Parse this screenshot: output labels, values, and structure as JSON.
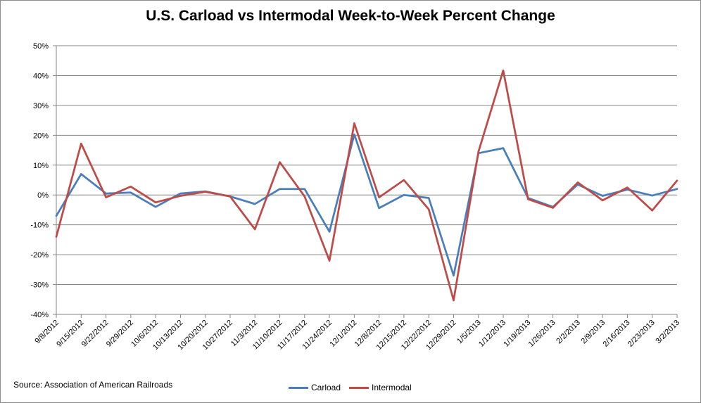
{
  "source_note": "Source: Association of American Railroads",
  "colors": {
    "carload": "#4a7ebb",
    "intermodal": "#be4b48",
    "grid": "#868686"
  },
  "chart_data": {
    "type": "line",
    "title": "U.S. Carload vs Intermodal Week-to-Week Percent Change",
    "xlabel": "",
    "ylabel": "",
    "ylim": [
      -0.4,
      0.5
    ],
    "yticks": [
      -0.4,
      -0.3,
      -0.2,
      -0.1,
      0,
      0.1,
      0.2,
      0.3,
      0.4,
      0.5
    ],
    "ytick_labels": [
      "-40%",
      "-30%",
      "-20%",
      "-10%",
      "0%",
      "10%",
      "20%",
      "30%",
      "40%",
      "50%"
    ],
    "grid": true,
    "legend": "bottom",
    "categories": [
      "9/8/2012",
      "9/15/2012",
      "9/22/2012",
      "9/29/2012",
      "10/6/2012",
      "10/13/2012",
      "10/20/2012",
      "10/27/2012",
      "11/3/2012",
      "11/10/2012",
      "11/17/2012",
      "11/24/2012",
      "12/1/2012",
      "12/8/2012",
      "12/15/2012",
      "12/22/2012",
      "12/29/2012",
      "1/5/2013",
      "1/12/2013",
      "1/19/2013",
      "1/26/2013",
      "2/2/2013",
      "2/9/2013",
      "2/16/2013",
      "2/23/2013",
      "3/2/2013"
    ],
    "series": [
      {
        "name": "Carload",
        "values": [
          -0.07,
          0.07,
          0.005,
          0.008,
          -0.04,
          0.005,
          0.012,
          -0.005,
          -0.03,
          0.02,
          0.02,
          -0.123,
          0.203,
          -0.044,
          0.0,
          -0.01,
          -0.27,
          0.14,
          0.157,
          -0.01,
          -0.04,
          0.035,
          -0.003,
          0.018,
          -0.002,
          0.02
        ]
      },
      {
        "name": "Intermodal",
        "values": [
          -0.14,
          0.172,
          -0.008,
          0.028,
          -0.025,
          -0.003,
          0.011,
          -0.005,
          -0.115,
          0.11,
          -0.005,
          -0.22,
          0.24,
          -0.008,
          0.05,
          -0.048,
          -0.353,
          0.145,
          0.417,
          -0.014,
          -0.043,
          0.042,
          -0.018,
          0.025,
          -0.052,
          0.048
        ]
      }
    ]
  }
}
